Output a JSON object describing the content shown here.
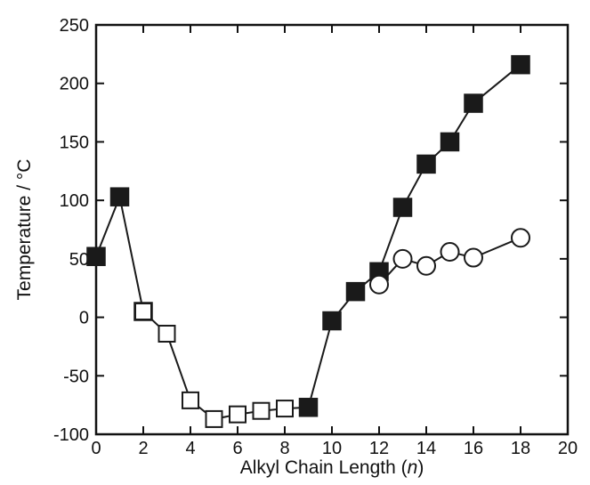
{
  "chart_data": {
    "type": "scatter",
    "title": "",
    "xlabel_prefix": "Alkyl Chain Length (",
    "xlabel_var": "n",
    "xlabel_suffix": ")",
    "ylabel": "Temperature / °C",
    "xlim": [
      0,
      20
    ],
    "ylim": [
      -100,
      250
    ],
    "xticks": [
      0,
      2,
      4,
      6,
      8,
      10,
      12,
      14,
      16,
      18,
      20
    ],
    "yticks": [
      -100,
      -50,
      0,
      50,
      100,
      150,
      200,
      250
    ],
    "grid": false,
    "legend": "none",
    "series": [
      {
        "marker": "filled-square",
        "connected": true,
        "color": "#1a1a1a",
        "points": [
          [
            0,
            52
          ],
          [
            1,
            103
          ],
          [
            2,
            5
          ]
        ]
      },
      {
        "marker": "open-square",
        "connected": true,
        "color": "#1a1a1a",
        "points": [
          [
            2,
            5
          ],
          [
            3,
            -14
          ],
          [
            4,
            -71
          ],
          [
            5,
            -87
          ],
          [
            6,
            -83
          ],
          [
            7,
            -80
          ],
          [
            8,
            -78
          ],
          [
            9,
            -77
          ]
        ]
      },
      {
        "marker": "filled-square",
        "connected": true,
        "color": "#1a1a1a",
        "points": [
          [
            9,
            -77
          ],
          [
            10,
            -3
          ],
          [
            11,
            22
          ],
          [
            12,
            39
          ],
          [
            13,
            94
          ],
          [
            14,
            131
          ],
          [
            15,
            150
          ],
          [
            16,
            183
          ],
          [
            18,
            216
          ]
        ]
      },
      {
        "marker": "open-circle",
        "connected": true,
        "color": "#1a1a1a",
        "points": [
          [
            12,
            28
          ],
          [
            13,
            50
          ],
          [
            14,
            44
          ],
          [
            15,
            56
          ],
          [
            16,
            51
          ],
          [
            18,
            68
          ]
        ]
      }
    ]
  }
}
